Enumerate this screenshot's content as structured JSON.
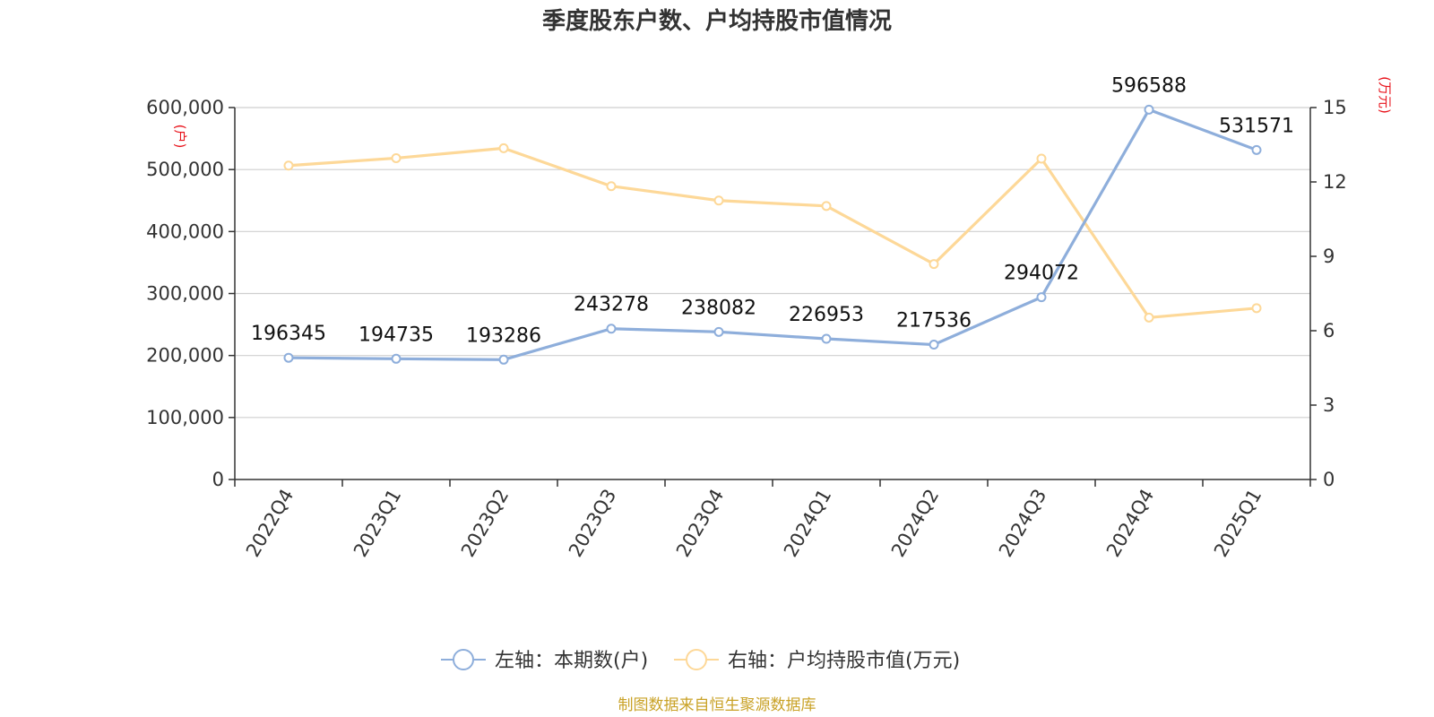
{
  "chart_data": {
    "type": "line",
    "title": "季度股东户数、户均持股市值情况",
    "categories": [
      "2022Q4",
      "2023Q1",
      "2023Q2",
      "2023Q3",
      "2023Q4",
      "2024Q1",
      "2024Q2",
      "2024Q3",
      "2024Q4",
      "2025Q1"
    ],
    "left_axis": {
      "unit": "(户)",
      "range": [
        0,
        600000
      ],
      "ticks": [
        0,
        100000,
        200000,
        300000,
        400000,
        500000,
        600000
      ],
      "tick_labels": [
        "0",
        "100,000",
        "200,000",
        "300,000",
        "400,000",
        "500,000",
        "600,000"
      ]
    },
    "right_axis": {
      "unit": "(万元)",
      "range": [
        0,
        15
      ],
      "ticks": [
        0,
        3,
        6,
        9,
        12,
        15
      ],
      "tick_labels": [
        "0",
        "3",
        "6",
        "9",
        "12",
        "15"
      ]
    },
    "series": [
      {
        "name": "左轴：本期数(户)",
        "axis": "left",
        "color": "#8eaedb",
        "values": [
          196345,
          194735,
          193286,
          243278,
          238082,
          226953,
          217536,
          294072,
          596588,
          531571
        ],
        "labels": [
          "196345",
          "194735",
          "193286",
          "243278",
          "238082",
          "226953",
          "217536",
          "294072",
          "596588",
          "531571"
        ]
      },
      {
        "name": "右轴：户均持股市值(万元)",
        "axis": "right",
        "color": "#fdd898",
        "values": [
          12.66,
          12.96,
          13.36,
          11.83,
          11.25,
          11.03,
          8.69,
          12.94,
          6.53,
          6.91
        ]
      }
    ],
    "grid": true,
    "legend_position": "bottom-center",
    "source": "制图数据来自恒生聚源数据库"
  }
}
